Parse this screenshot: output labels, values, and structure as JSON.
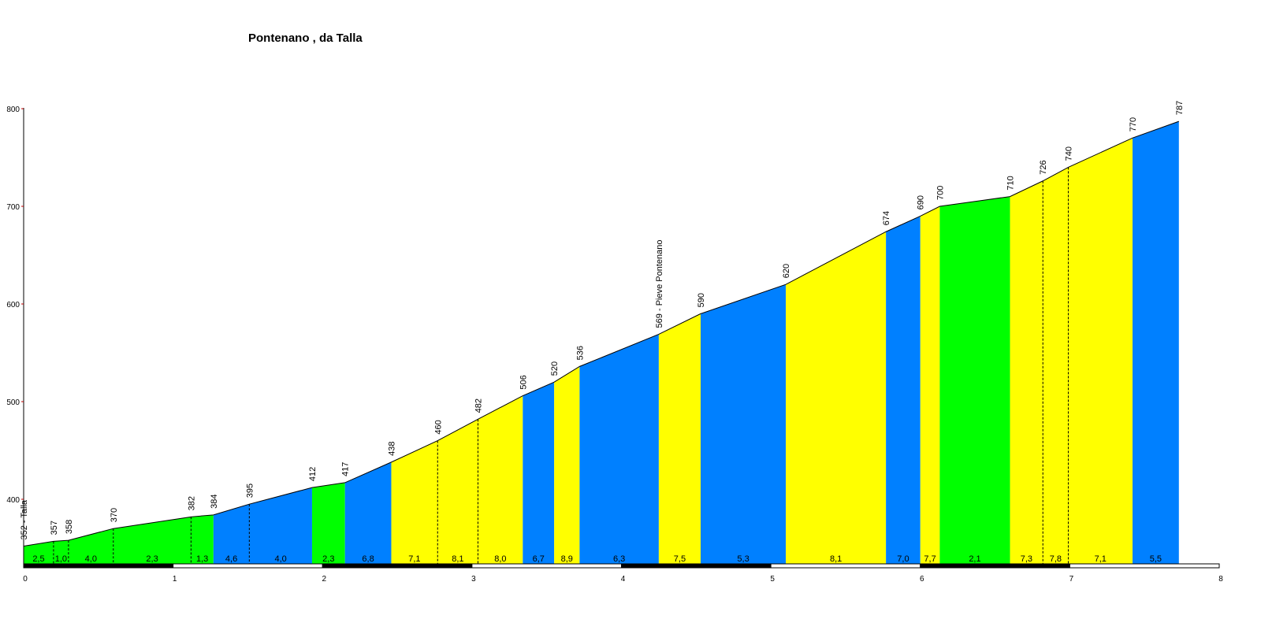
{
  "chart_data": {
    "type": "area",
    "title": "Pontenano , da Talla",
    "xlabel": "",
    "ylabel": "",
    "xlim": [
      0,
      8
    ],
    "ylim": [
      333,
      800
    ],
    "x_ticks": [
      "0",
      "1",
      "2",
      "3",
      "4",
      "5",
      "6",
      "7",
      "8"
    ],
    "y_ticks": [
      "400",
      "500",
      "600",
      "700",
      "800"
    ],
    "grid": false,
    "points": [
      {
        "km": 0.0,
        "elev": 352,
        "label": "352 - Talla"
      },
      {
        "km": 0.2,
        "elev": 357,
        "label": "357"
      },
      {
        "km": 0.3,
        "elev": 358,
        "label": "358"
      },
      {
        "km": 0.6,
        "elev": 370,
        "label": "370"
      },
      {
        "km": 1.12,
        "elev": 382,
        "label": "382"
      },
      {
        "km": 1.27,
        "elev": 384,
        "label": "384"
      },
      {
        "km": 1.51,
        "elev": 395,
        "label": "395"
      },
      {
        "km": 1.93,
        "elev": 412,
        "label": "412"
      },
      {
        "km": 2.15,
        "elev": 417,
        "label": "417"
      },
      {
        "km": 2.46,
        "elev": 438,
        "label": "438"
      },
      {
        "km": 2.77,
        "elev": 460,
        "label": "460"
      },
      {
        "km": 3.04,
        "elev": 482,
        "label": "482"
      },
      {
        "km": 3.34,
        "elev": 506,
        "label": "506"
      },
      {
        "km": 3.55,
        "elev": 520,
        "label": "520"
      },
      {
        "km": 3.72,
        "elev": 536,
        "label": "536"
      },
      {
        "km": 4.25,
        "elev": 569,
        "label": "569 - Pieve Pontenano"
      },
      {
        "km": 4.53,
        "elev": 590,
        "label": "590"
      },
      {
        "km": 5.1,
        "elev": 620,
        "label": "620"
      },
      {
        "km": 5.77,
        "elev": 674,
        "label": "674"
      },
      {
        "km": 6.0,
        "elev": 690,
        "label": "690"
      },
      {
        "km": 6.13,
        "elev": 700,
        "label": "700"
      },
      {
        "km": 6.6,
        "elev": 710,
        "label": "710"
      },
      {
        "km": 6.82,
        "elev": 726,
        "label": "726"
      },
      {
        "km": 6.99,
        "elev": 740,
        "label": "740"
      },
      {
        "km": 7.42,
        "elev": 770,
        "label": "770"
      },
      {
        "km": 7.73,
        "elev": 787,
        "label": "787"
      }
    ],
    "segments": [
      {
        "gradient": "2,5",
        "color": "#00ff00"
      },
      {
        "gradient": "1,0",
        "color": "#00ff00"
      },
      {
        "gradient": "4,0",
        "color": "#00ff00"
      },
      {
        "gradient": "2,3",
        "color": "#00ff00"
      },
      {
        "gradient": "1,3",
        "color": "#00ff00"
      },
      {
        "gradient": "4,6",
        "color": "#0080ff"
      },
      {
        "gradient": "4,0",
        "color": "#0080ff"
      },
      {
        "gradient": "2,3",
        "color": "#00ff00"
      },
      {
        "gradient": "6,8",
        "color": "#0080ff"
      },
      {
        "gradient": "7,1",
        "color": "#ffff00"
      },
      {
        "gradient": "8,1",
        "color": "#ffff00"
      },
      {
        "gradient": "8,0",
        "color": "#ffff00"
      },
      {
        "gradient": "6,7",
        "color": "#0080ff"
      },
      {
        "gradient": "8,9",
        "color": "#ffff00"
      },
      {
        "gradient": "6,3",
        "color": "#0080ff"
      },
      {
        "gradient": "7,5",
        "color": "#ffff00"
      },
      {
        "gradient": "5,3",
        "color": "#0080ff"
      },
      {
        "gradient": "8,1",
        "color": "#ffff00"
      },
      {
        "gradient": "7,0",
        "color": "#0080ff"
      },
      {
        "gradient": "7,7",
        "color": "#ffff00"
      },
      {
        "gradient": "2,1",
        "color": "#00ff00"
      },
      {
        "gradient": "7,3",
        "color": "#ffff00"
      },
      {
        "gradient": "7,8",
        "color": "#ffff00"
      },
      {
        "gradient": "7,1",
        "color": "#ffff00"
      },
      {
        "gradient": "5,5",
        "color": "#0080ff"
      }
    ]
  }
}
